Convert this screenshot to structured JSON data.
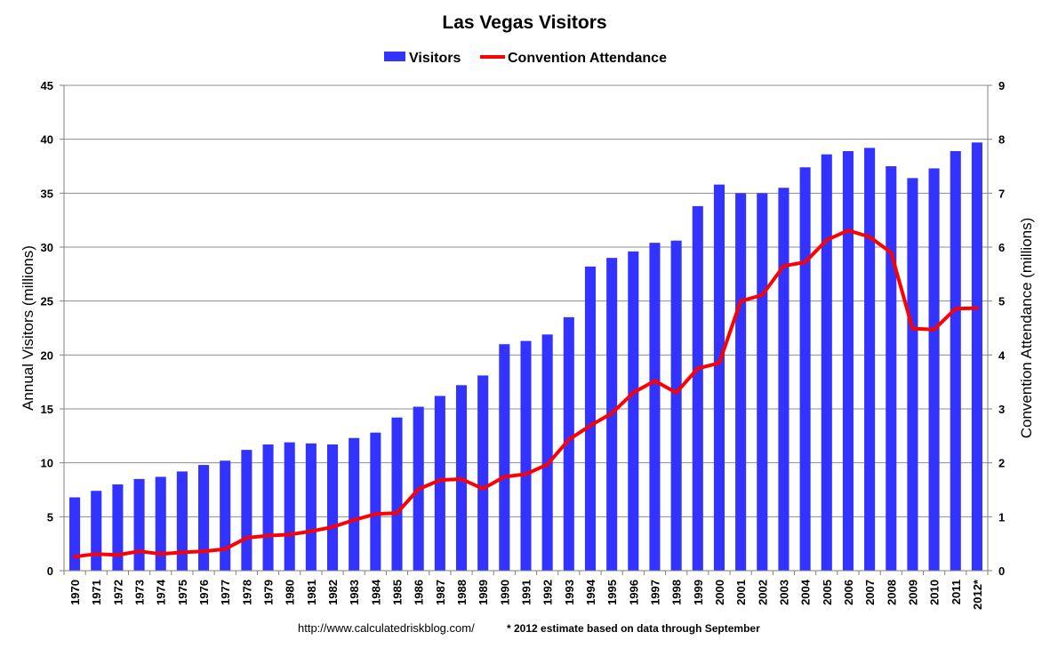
{
  "chart_data": {
    "type": "bar",
    "title": "Las Vegas Visitors",
    "categories": [
      "1970",
      "1971",
      "1972",
      "1973",
      "1974",
      "1975",
      "1976",
      "1977",
      "1978",
      "1979",
      "1980",
      "1981",
      "1982",
      "1983",
      "1984",
      "1985",
      "1986",
      "1987",
      "1988",
      "1989",
      "1990",
      "1991",
      "1992",
      "1993",
      "1994",
      "1995",
      "1996",
      "1997",
      "1998",
      "1999",
      "2000",
      "2001",
      "2002",
      "2003",
      "2004",
      "2005",
      "2006",
      "2007",
      "2008",
      "2009",
      "2010",
      "2011",
      "2012*"
    ],
    "series": [
      {
        "name": "Visitors",
        "type": "bar",
        "axis": "left",
        "color": "#3333ff",
        "values": [
          6.8,
          7.4,
          8.0,
          8.5,
          8.7,
          9.2,
          9.8,
          10.2,
          11.2,
          11.7,
          11.9,
          11.8,
          11.7,
          12.3,
          12.8,
          14.2,
          15.2,
          16.2,
          17.2,
          18.1,
          21.0,
          21.3,
          21.9,
          23.5,
          28.2,
          29.0,
          29.6,
          30.4,
          30.6,
          33.8,
          35.8,
          35.0,
          35.0,
          35.5,
          37.4,
          38.6,
          38.9,
          39.2,
          37.5,
          36.4,
          37.3,
          38.9,
          39.7
        ]
      },
      {
        "name": "Convention Attendance",
        "type": "line",
        "axis": "right",
        "color": "#ff0000",
        "values": [
          0.26,
          0.31,
          0.29,
          0.36,
          0.31,
          0.34,
          0.36,
          0.4,
          0.61,
          0.65,
          0.67,
          0.73,
          0.81,
          0.94,
          1.05,
          1.07,
          1.51,
          1.68,
          1.7,
          1.52,
          1.74,
          1.79,
          1.97,
          2.43,
          2.69,
          2.92,
          3.3,
          3.52,
          3.3,
          3.75,
          3.85,
          5.0,
          5.11,
          5.65,
          5.72,
          6.13,
          6.31,
          6.19,
          5.9,
          4.49,
          4.47,
          4.86,
          4.87
        ]
      }
    ],
    "ylabel": "Annual Visitors (millions)",
    "y2label": "Convention Attendance (millions)",
    "xlabel": "",
    "ylim": [
      0,
      45
    ],
    "y2lim": [
      0,
      9
    ],
    "yticks": [
      "0",
      "5",
      "10",
      "15",
      "20",
      "25",
      "30",
      "35",
      "40",
      "45"
    ],
    "y2ticks": [
      "0",
      "1",
      "2",
      "3",
      "4",
      "5",
      "6",
      "7",
      "8",
      "9"
    ],
    "grid": true,
    "legend_position": "top-center",
    "source_text": "http://www.calculatedriskblog.com/",
    "footnote": "* 2012 estimate based on data through September"
  }
}
